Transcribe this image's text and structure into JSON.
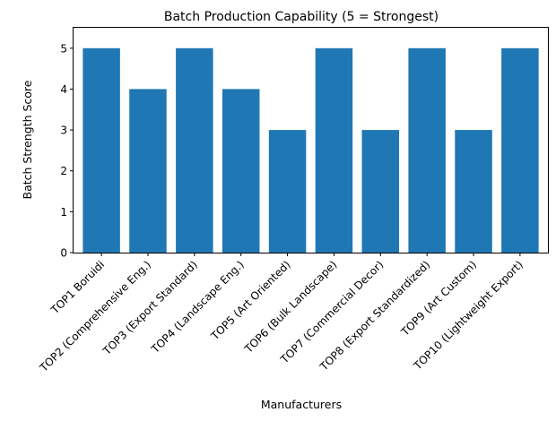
{
  "chart_data": {
    "type": "bar",
    "title": "Batch Production Capability (5 = Strongest)",
    "xlabel": "Manufacturers",
    "ylabel": "Batch Strength Score",
    "categories": [
      "TOP1 Boruidi",
      "TOP2 (Comprehensive Eng.)",
      "TOP3 (Export Standard)",
      "TOP4 (Landscape Eng.)",
      "TOP5 (Art Oriented)",
      "TOP6 (Bulk Landscape)",
      "TOP7 (Commercial Decor)",
      "TOP8 (Export Standardized)",
      "TOP9 (Art Custom)",
      "TOP10 (Lightweight Export)"
    ],
    "values": [
      5,
      4,
      5,
      4,
      3,
      5,
      3,
      5,
      3,
      5
    ],
    "ylim": [
      0,
      5.5
    ],
    "yticks": [
      0,
      1,
      2,
      3,
      4,
      5
    ],
    "bar_color": "#1f77b4",
    "grid": false,
    "legend": "none"
  }
}
